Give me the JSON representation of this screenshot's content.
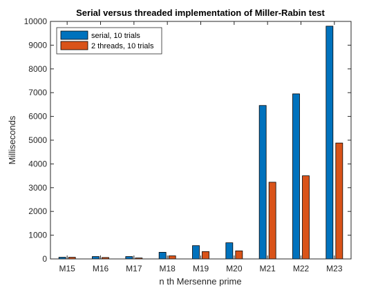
{
  "chart_data": {
    "type": "bar",
    "title": "Serial versus threaded implementation of Miller-Rabin test",
    "xlabel": "n th Mersenne prime",
    "ylabel": "Milliseconds",
    "categories": [
      "M15",
      "M16",
      "M17",
      "M18",
      "M19",
      "M20",
      "M21",
      "M22",
      "M23"
    ],
    "ylim": [
      0,
      10000
    ],
    "yticks": [
      0,
      1000,
      2000,
      3000,
      4000,
      5000,
      6000,
      7000,
      8000,
      9000,
      10000
    ],
    "grid": false,
    "legend_position": "top-left",
    "series": [
      {
        "name": "serial, 10 trials",
        "color": "#0072BD",
        "values": [
          70,
          100,
          100,
          280,
          560,
          680,
          6460,
          6950,
          9800
        ]
      },
      {
        "name": "2 threads, 10 trials",
        "color": "#D95319",
        "values": [
          70,
          60,
          40,
          130,
          310,
          340,
          3230,
          3500,
          4880
        ]
      }
    ]
  }
}
